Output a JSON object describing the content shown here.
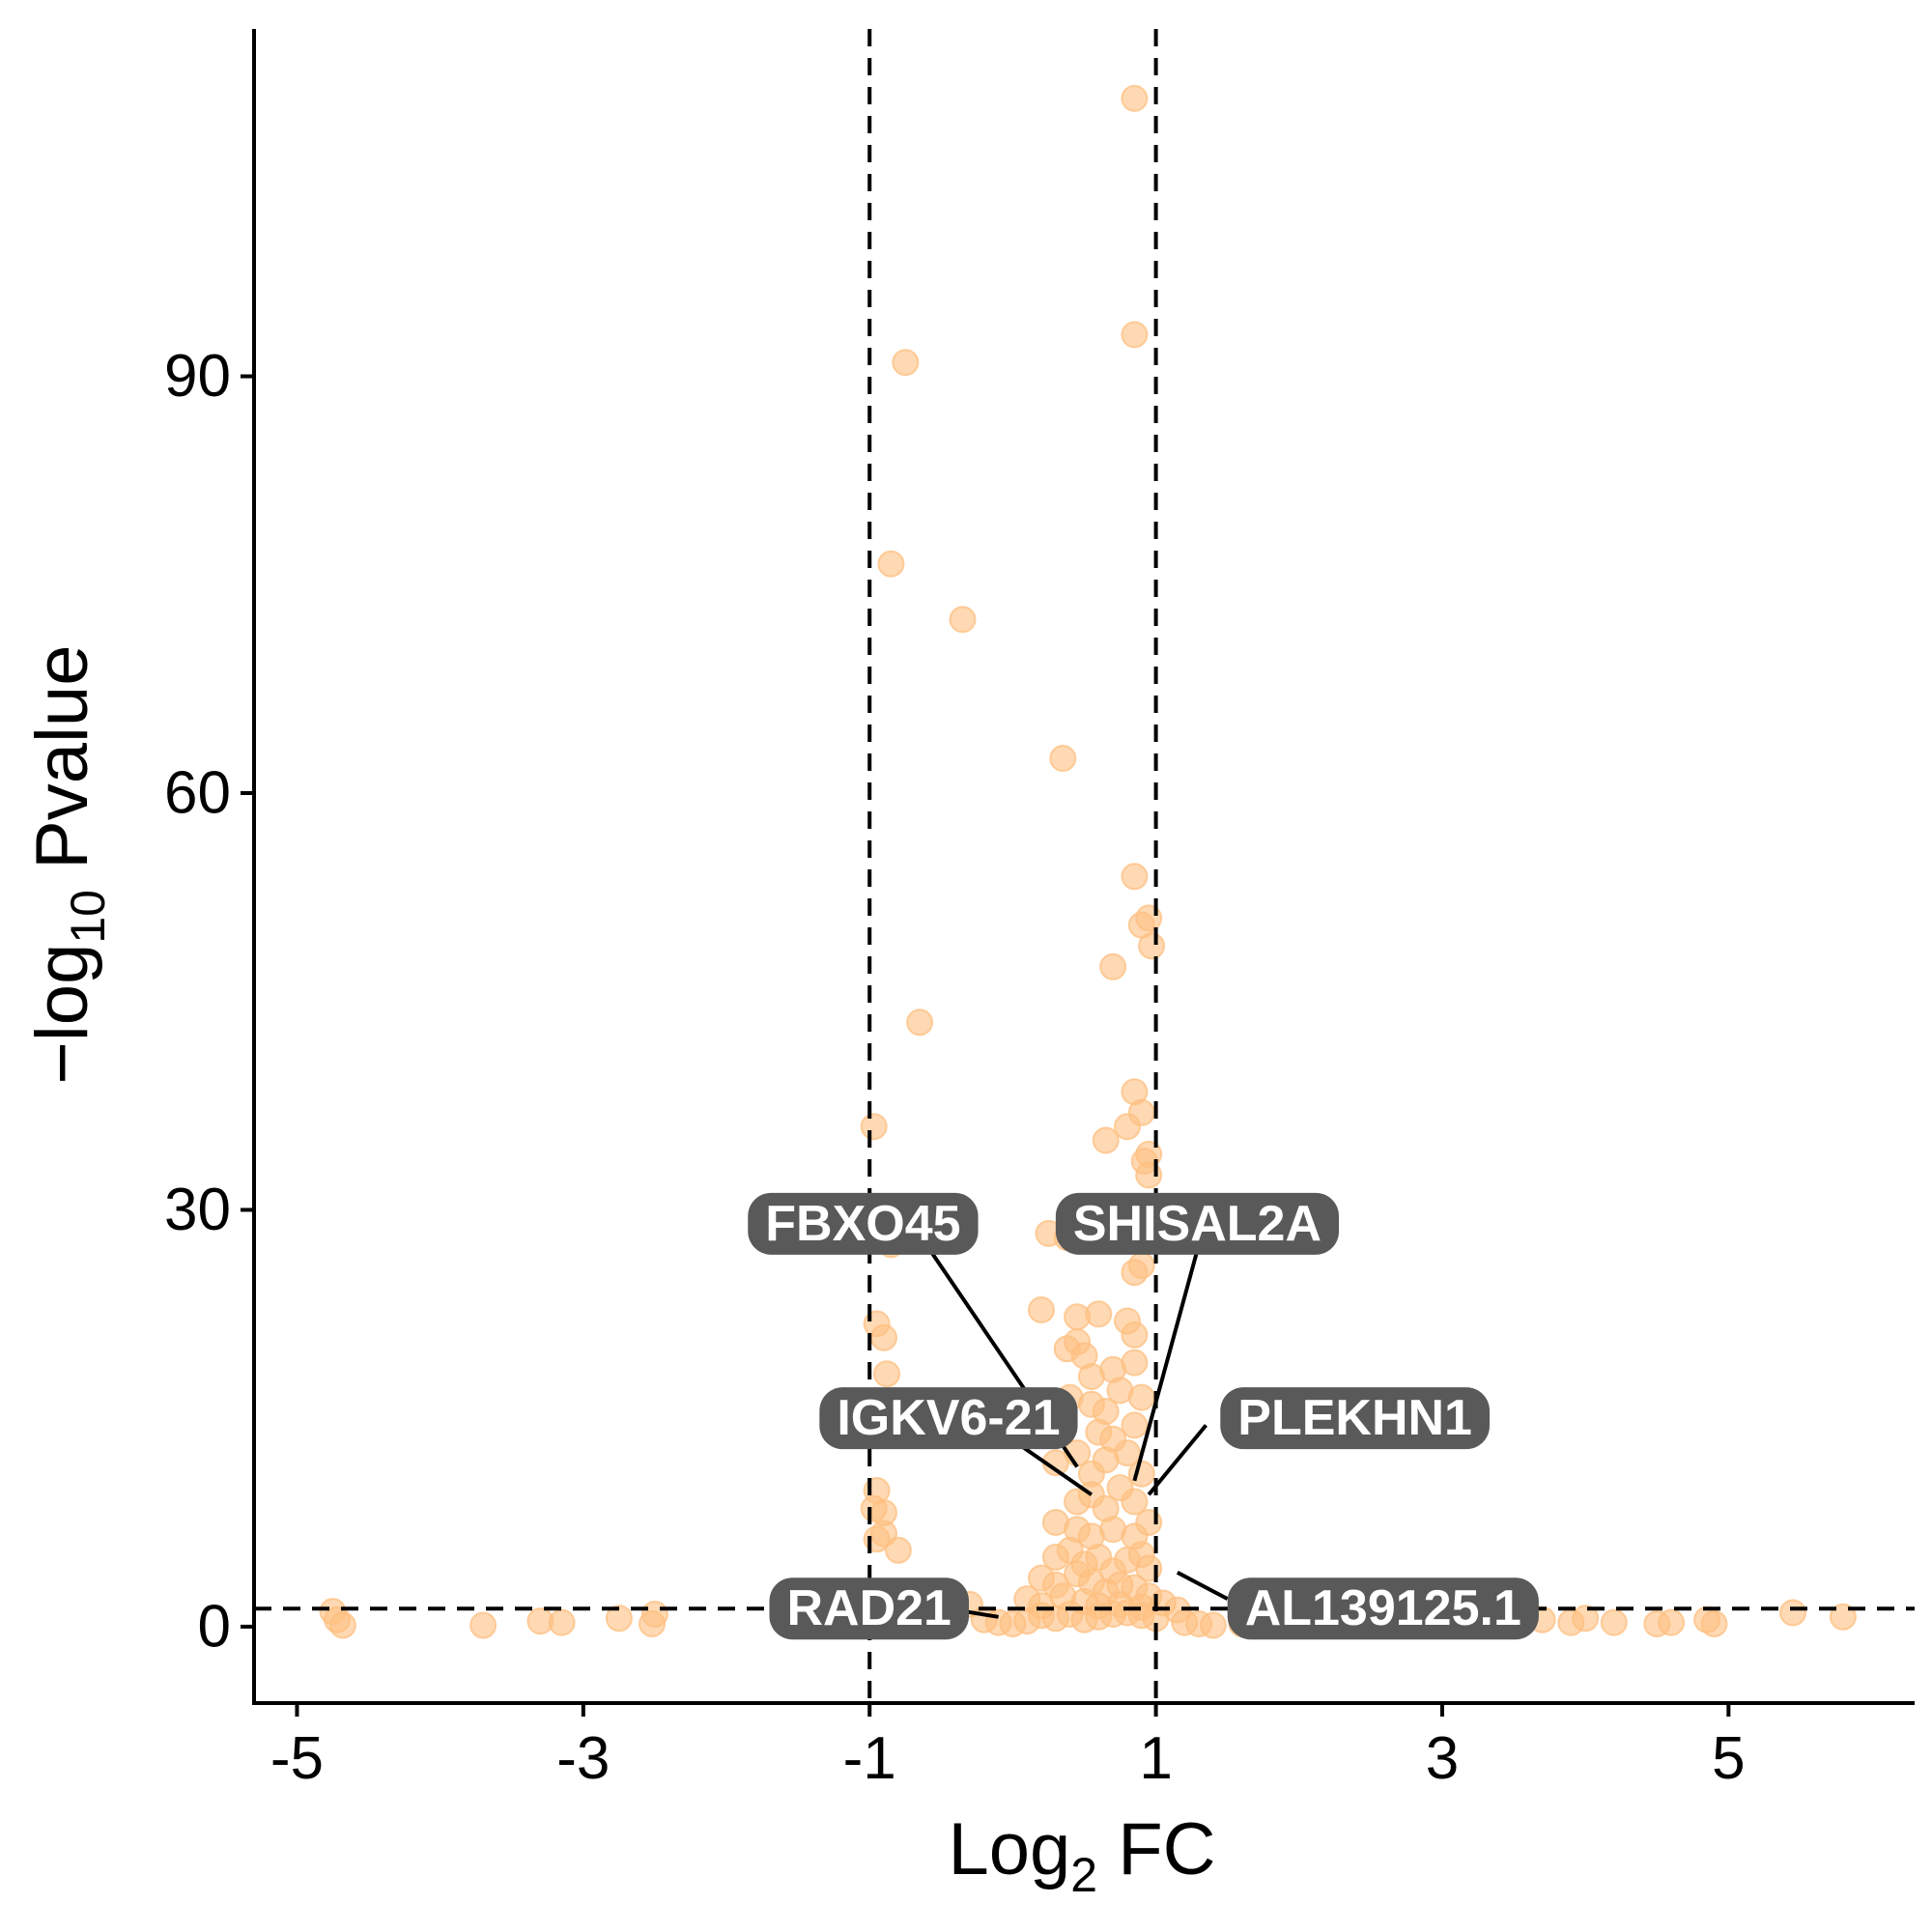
{
  "chart_data": {
    "type": "scatter",
    "xlabel": {
      "main": "Log",
      "sub": "2",
      "tail": " FC"
    },
    "ylabel": {
      "main": "−log",
      "sub": "10",
      "tail": " Pvalue"
    },
    "xlim": [
      -5.3,
      6.3
    ],
    "ylim": [
      -5.5,
      115
    ],
    "x_ticks": [
      -5,
      -3,
      -1,
      1,
      3,
      5
    ],
    "y_ticks": [
      0,
      30,
      60,
      90
    ],
    "thresholds": {
      "x": [
        -1,
        1
      ],
      "y": 1.3
    },
    "point_color": "#FDBF80",
    "label_color": "#595959",
    "points": [
      [
        0.85,
        110
      ],
      [
        0.85,
        93
      ],
      [
        -0.75,
        91
      ],
      [
        -0.85,
        76.5
      ],
      [
        -0.35,
        72.5
      ],
      [
        0.35,
        62.5
      ],
      [
        0.85,
        54
      ],
      [
        0.9,
        50.5
      ],
      [
        0.95,
        51
      ],
      [
        0.97,
        49
      ],
      [
        0.7,
        47.5
      ],
      [
        -0.65,
        43.5
      ],
      [
        0.85,
        38.5
      ],
      [
        0.9,
        37
      ],
      [
        0.8,
        36
      ],
      [
        -0.97,
        36
      ],
      [
        0.65,
        35
      ],
      [
        0.95,
        34
      ],
      [
        0.95,
        32.5
      ],
      [
        0.92,
        33.5
      ],
      [
        -0.65,
        29.5
      ],
      [
        -0.85,
        27.5
      ],
      [
        0.25,
        28.3
      ],
      [
        0.38,
        28
      ],
      [
        0.9,
        26
      ],
      [
        0.85,
        25.5
      ],
      [
        0.96,
        30
      ],
      [
        0.2,
        22.8
      ],
      [
        0.45,
        22.3
      ],
      [
        0.6,
        22.5
      ],
      [
        0.8,
        22
      ],
      [
        0.85,
        21
      ],
      [
        -0.95,
        21.8
      ],
      [
        -0.9,
        20.8
      ],
      [
        0.38,
        20
      ],
      [
        0.45,
        20.5
      ],
      [
        0.5,
        19.5
      ],
      [
        0.55,
        18
      ],
      [
        0.7,
        18.5
      ],
      [
        0.85,
        19
      ],
      [
        -0.88,
        18.2
      ],
      [
        0.4,
        16.5
      ],
      [
        0.55,
        16
      ],
      [
        0.65,
        15.5
      ],
      [
        0.75,
        17
      ],
      [
        0.9,
        16.5
      ],
      [
        0.6,
        14
      ],
      [
        0.7,
        13.5
      ],
      [
        0.85,
        14.5
      ],
      [
        0.3,
        14.5
      ],
      [
        0.3,
        11.8
      ],
      [
        0.45,
        12.5
      ],
      [
        0.55,
        11
      ],
      [
        0.65,
        12
      ],
      [
        0.8,
        12.5
      ],
      [
        0.9,
        11
      ],
      [
        -0.95,
        9.8
      ],
      [
        -0.97,
        8.5
      ],
      [
        -0.9,
        8.2
      ],
      [
        0.45,
        9
      ],
      [
        0.55,
        9.5
      ],
      [
        0.65,
        8.5
      ],
      [
        0.75,
        10
      ],
      [
        0.85,
        9
      ],
      [
        -0.95,
        6.3
      ],
      [
        -0.9,
        6.7
      ],
      [
        -0.8,
        5.5
      ],
      [
        0.3,
        7.5
      ],
      [
        0.45,
        7
      ],
      [
        0.55,
        6.5
      ],
      [
        0.7,
        7
      ],
      [
        0.85,
        6.5
      ],
      [
        0.95,
        7.5
      ],
      [
        0.3,
        5
      ],
      [
        0.4,
        5.5
      ],
      [
        0.5,
        4.5
      ],
      [
        0.6,
        5
      ],
      [
        0.7,
        4
      ],
      [
        0.8,
        4.8
      ],
      [
        0.9,
        5.2
      ],
      [
        0.95,
        4.2
      ],
      [
        0.2,
        3.5
      ],
      [
        0.3,
        3
      ],
      [
        0.45,
        3.8
      ],
      [
        0.55,
        3.2
      ],
      [
        0.65,
        2.5
      ],
      [
        0.75,
        3
      ],
      [
        0.85,
        2.8
      ],
      [
        0.95,
        2.2
      ],
      [
        0.1,
        2
      ],
      [
        0.2,
        1.5
      ],
      [
        0.35,
        2.2
      ],
      [
        0.5,
        1.8
      ],
      [
        0.6,
        1.5
      ],
      [
        0.75,
        1.6
      ],
      [
        0.9,
        1.4
      ],
      [
        1.05,
        1.7
      ],
      [
        1.15,
        1.2
      ],
      [
        -0.2,
        0.5
      ],
      [
        -0.1,
        0.3
      ],
      [
        0.0,
        0.2
      ],
      [
        0.1,
        0.4
      ],
      [
        0.2,
        0.8
      ],
      [
        0.3,
        0.6
      ],
      [
        0.4,
        0.9
      ],
      [
        0.5,
        0.5
      ],
      [
        0.6,
        0.7
      ],
      [
        0.7,
        0.9
      ],
      [
        0.8,
        1.0
      ],
      [
        0.9,
        0.8
      ],
      [
        1.0,
        0.6
      ],
      [
        1.2,
        0.3
      ],
      [
        1.3,
        0.2
      ],
      [
        1.4,
        0.1
      ],
      [
        1.6,
        0.2
      ],
      [
        -0.6,
        0.4
      ],
      [
        -0.45,
        0.2
      ],
      [
        -0.8,
        1.6
      ],
      [
        -0.7,
        0.6
      ],
      [
        -0.3,
        1.6
      ],
      [
        -4.75,
        1.1
      ],
      [
        -4.72,
        0.5
      ],
      [
        -4.68,
        0.1
      ],
      [
        -3.7,
        0.1
      ],
      [
        -3.3,
        0.4
      ],
      [
        -3.15,
        0.3
      ],
      [
        -2.75,
        0.6
      ],
      [
        -2.5,
        0.9
      ],
      [
        -2.52,
        0.2
      ],
      [
        2.0,
        0.9
      ],
      [
        2.2,
        0.7
      ],
      [
        2.4,
        0.5
      ],
      [
        2.6,
        0.4
      ],
      [
        2.8,
        0.6
      ],
      [
        3.0,
        0.5
      ],
      [
        3.2,
        0.4
      ],
      [
        3.5,
        0.8
      ],
      [
        3.7,
        0.5
      ],
      [
        3.9,
        0.3
      ],
      [
        4.0,
        0.6
      ],
      [
        4.2,
        0.3
      ],
      [
        4.5,
        0.2
      ],
      [
        4.6,
        0.3
      ],
      [
        4.85,
        0.5
      ],
      [
        4.9,
        0.2
      ],
      [
        5.45,
        1.0
      ],
      [
        5.8,
        0.7
      ]
    ],
    "labels": [
      {
        "text": "FBXO45",
        "x": -1.85,
        "y": 29.0,
        "point": [
          0.45,
          11.5
        ],
        "line_from": [
          -0.65,
          28.2
        ]
      },
      {
        "text": "SHISAL2A",
        "x": 0.3,
        "y": 29.0,
        "point": [
          0.85,
          10.5
        ],
        "line_from": [
          1.3,
          27.5
        ]
      },
      {
        "text": "IGKV6-21",
        "x": -1.35,
        "y": 15.0,
        "point": [
          0.55,
          9.5
        ],
        "line_from": [
          -0.15,
          14.5
        ]
      },
      {
        "text": "PLEKHN1",
        "x": 1.45,
        "y": 15.0,
        "point": [
          0.95,
          9.5
        ],
        "line_from": [
          1.35,
          14.5
        ]
      },
      {
        "text": "RAD21",
        "x": -1.7,
        "y": 1.3,
        "point": [
          -0.1,
          0.7
        ],
        "line_from": [
          -0.4,
          1.2
        ]
      },
      {
        "text": "AL139125.1",
        "x": 1.5,
        "y": 1.3,
        "point": [
          1.15,
          3.9
        ],
        "line_from": [
          1.5,
          2.0
        ]
      }
    ]
  }
}
